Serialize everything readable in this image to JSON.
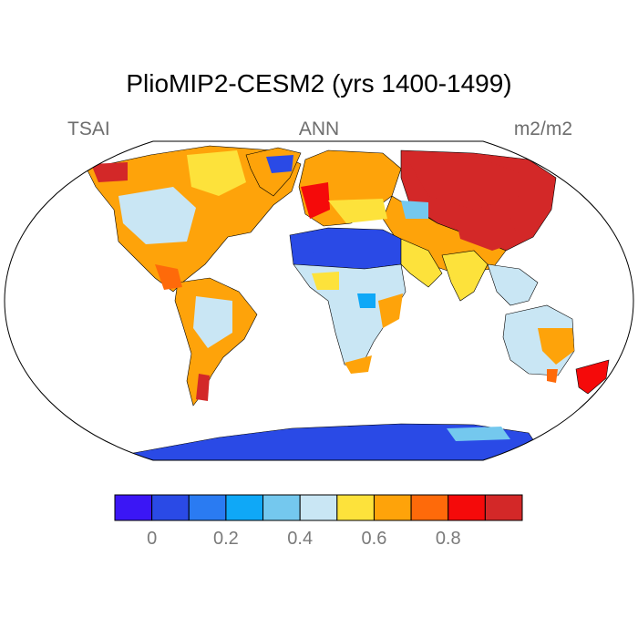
{
  "title": "PlioMIP2-CESM2 (yrs 1400-1499)",
  "left_label": "TSAI",
  "center_label": "ANN",
  "right_label": "m2/m2",
  "projection": "Robinson",
  "colorbar": {
    "colors": [
      "#3b16f5",
      "#2a4ae6",
      "#2a7bf2",
      "#0fa8f7",
      "#74c8ee",
      "#c9e6f4",
      "#fde23b",
      "#fea30a",
      "#fe6a0a",
      "#f50a0a",
      "#d32828"
    ],
    "tick_labels": [
      "0",
      "0.2",
      "0.4",
      "0.6",
      "0.8"
    ]
  },
  "regions": [
    {
      "name": "North America",
      "color": "#fea30a"
    },
    {
      "name": "Greenland",
      "color": "#fea30a"
    },
    {
      "name": "South America",
      "color": "#fea30a"
    },
    {
      "name": "Europe",
      "color": "#fea30a"
    },
    {
      "name": "Siberia",
      "color": "#d32828"
    },
    {
      "name": "Central Asia",
      "color": "#fea30a"
    },
    {
      "name": "Sahara",
      "color": "#2a4ae6"
    },
    {
      "name": "Africa",
      "color": "#c9e6f4"
    },
    {
      "name": "Arabia",
      "color": "#fde23b"
    },
    {
      "name": "India",
      "color": "#fde23b"
    },
    {
      "name": "Southeast Asia",
      "color": "#c9e6f4"
    },
    {
      "name": "Australia",
      "color": "#c9e6f4"
    },
    {
      "name": "New Zealand",
      "color": "#f50a0a"
    },
    {
      "name": "Antarctica",
      "color": "#2a4ae6"
    }
  ]
}
